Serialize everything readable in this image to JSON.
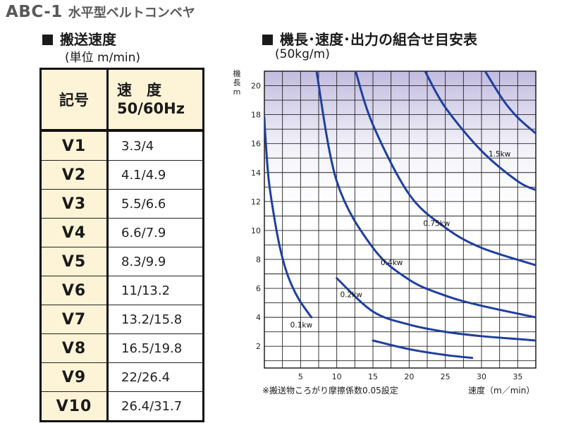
{
  "title": {
    "model": "ABC-1",
    "name": "水平型ベルトコンベヤ"
  },
  "speed_table": {
    "title": "搬送速度",
    "unit_note": "(単位 m/min)",
    "headers": {
      "code": "記号",
      "speed_line1": "速　度",
      "speed_line2": "50/60Hz"
    },
    "rows": [
      {
        "code": "V1",
        "speed": "3.3/4"
      },
      {
        "code": "V2",
        "speed": "4.1/4.9"
      },
      {
        "code": "V3",
        "speed": "5.5/6.6"
      },
      {
        "code": "V4",
        "speed": "6.6/7.9"
      },
      {
        "code": "V5",
        "speed": "8.3/9.9"
      },
      {
        "code": "V6",
        "speed": "11/13.2"
      },
      {
        "code": "V7",
        "speed": "13.2/15.8"
      },
      {
        "code": "V8",
        "speed": "16.5/19.8"
      },
      {
        "code": "V9",
        "speed": "22/26.4"
      },
      {
        "code": "V10",
        "speed": "26.4/31.7"
      }
    ]
  },
  "chart_section": {
    "title": "機長･速度･出力の組合せ目安表",
    "subtitle": "(50kg/m)",
    "note": "※搬送物ころがり摩擦係数0.05設定"
  },
  "colors": {
    "curve": "#1f3f9e",
    "grid": "#222222",
    "table_header_bg": "#fdf3d6",
    "shade_top": "#8f84c6"
  },
  "chart_data": {
    "type": "line",
    "xlabel": "速度（m／min）",
    "ylabel": "機長 m",
    "xlim": [
      0,
      37.5
    ],
    "ylim": [
      0.5,
      21
    ],
    "x_ticks": [
      5,
      10,
      15,
      20,
      25,
      30,
      35
    ],
    "y_ticks": [
      2,
      4,
      6,
      8,
      10,
      12,
      14,
      16,
      18,
      20
    ],
    "grid": true,
    "legend": "none",
    "series": [
      {
        "name": "0.1kw",
        "label_at": [
          5.1,
          3.5
        ],
        "x": [
          15,
          20,
          25,
          28.7
        ],
        "y": [
          2.4,
          1.8,
          1.4,
          1.2
        ]
      },
      {
        "name": "0.2kw",
        "label_at": [
          12,
          5.6
        ],
        "x": [
          10,
          15,
          20,
          25,
          30,
          35,
          37.5
        ],
        "y": [
          6.7,
          4.4,
          3.5,
          3.0,
          2.7,
          2.5,
          2.4
        ]
      },
      {
        "name": "0.4kw",
        "label_at": [
          17.6,
          7.8
        ],
        "x": [
          7.2,
          10,
          15,
          20,
          25,
          30,
          37.5
        ],
        "y": [
          21,
          13.4,
          8.8,
          6.6,
          5.5,
          4.8,
          4.0
        ]
      },
      {
        "name": "0.75kw",
        "label_at": [
          23.8,
          10.5
        ],
        "x": [
          12.6,
          15,
          20,
          25,
          30,
          37.5
        ],
        "y": [
          21,
          17.3,
          12.5,
          10.2,
          8.8,
          7.6
        ]
      },
      {
        "name": "1.5kw",
        "label_at": [
          32.5,
          15.3
        ],
        "x": [
          22.2,
          25,
          30,
          35,
          37.5
        ],
        "y": [
          21,
          18.5,
          15.5,
          13.4,
          12.8
        ]
      },
      {
        "name": "",
        "x": [
          0,
          0.1,
          0.6,
          1.5,
          2.3,
          3.3,
          4.7,
          6.5
        ],
        "y": [
          17.8,
          16.8,
          13.5,
          10.5,
          8.5,
          6.8,
          5.3,
          4.0
        ]
      },
      {
        "name": "",
        "x": [
          30.5,
          33,
          35,
          37.5
        ],
        "y": [
          21,
          19,
          17.8,
          16.7
        ]
      }
    ]
  }
}
